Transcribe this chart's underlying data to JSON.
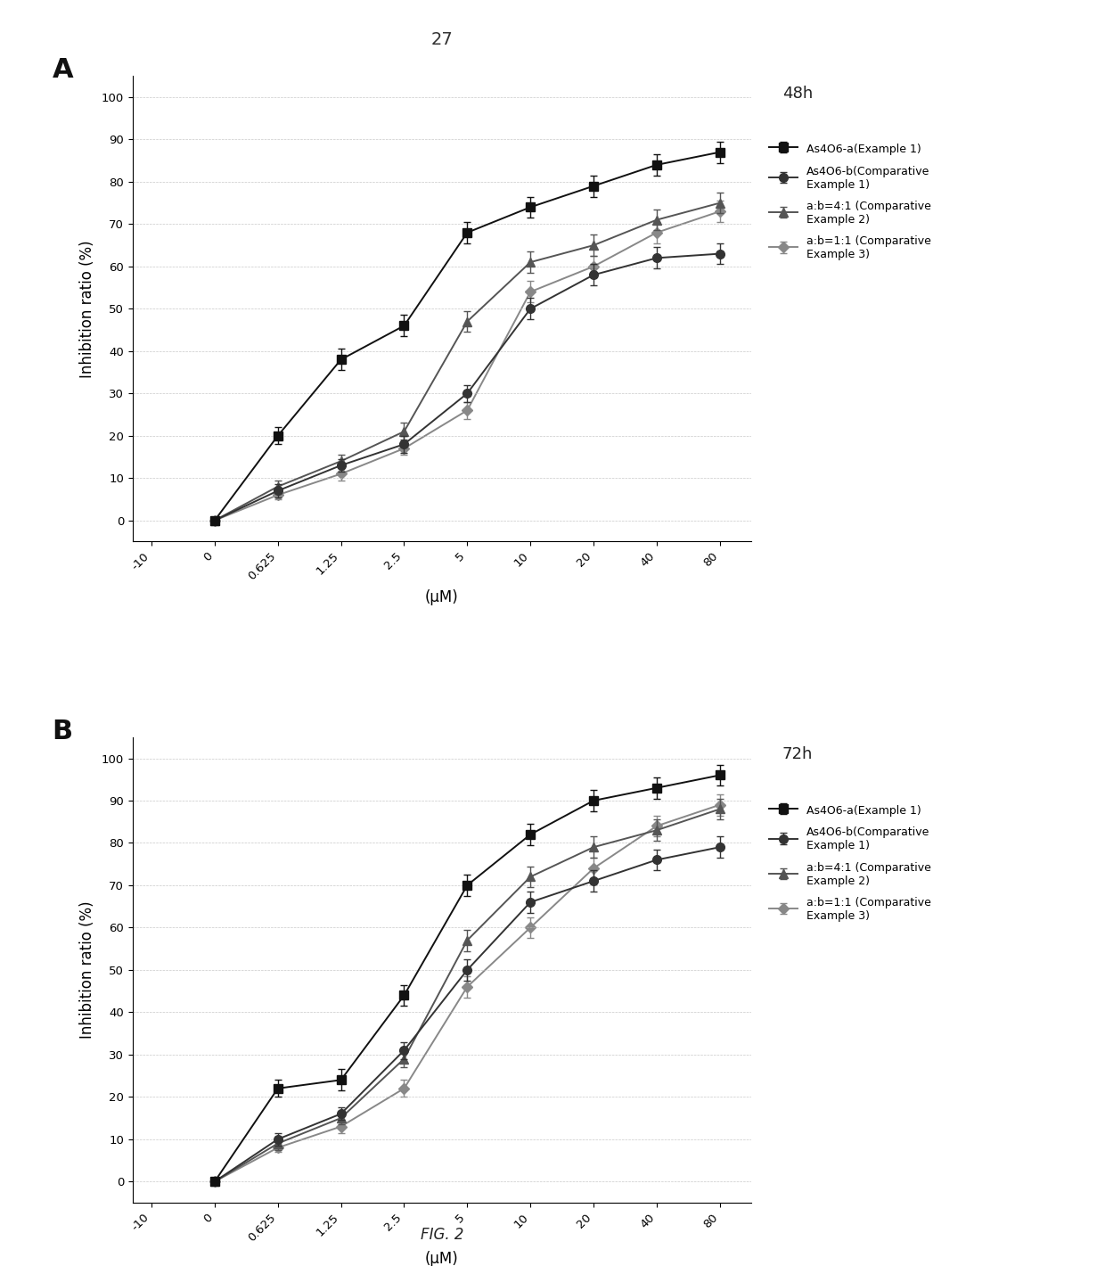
{
  "page_number": "27",
  "fig_label": "FIG. 2",
  "x_tick_labels": [
    "-10",
    "0",
    "0.625",
    "1.25",
    "2.5",
    "5",
    "10",
    "20",
    "40",
    "80"
  ],
  "x_data_indices": [
    1,
    2,
    3,
    4,
    5,
    6,
    7,
    8,
    9
  ],
  "xlabel": "(μM)",
  "ylabel": "Inhibition ratio (%)",
  "ylim": [
    -5,
    105
  ],
  "yticks": [
    0,
    10,
    20,
    30,
    40,
    50,
    60,
    70,
    80,
    90,
    100
  ],
  "panel_A_label": "A",
  "panel_B_label": "B",
  "time_A": "48h",
  "time_B": "72h",
  "series_colors": [
    "#111111",
    "#333333",
    "#555555",
    "#888888"
  ],
  "series_markers": [
    "s",
    "o",
    "^",
    "D"
  ],
  "series_markersizes": [
    7,
    7,
    7,
    6
  ],
  "series_linestyles": [
    "-",
    "-",
    "-",
    "-"
  ],
  "legend_labels_A": [
    "As4O6-a(Example 1)",
    "As4O6-b(Comparative\nExample 1)",
    "a:b=4:1 (Comparative\nExample 2)",
    "a:b=1:1 (Comparative\nExample 3)"
  ],
  "legend_labels_B": [
    "As4O6-a(Example 1)",
    "As4O6-b(Comparative\nExample 1)",
    "a:b=4:1 (Comparative\nExample 2)",
    "a:b=1:1 (Comparative\nExample 3)"
  ],
  "A_series1_y": [
    0,
    20,
    38,
    46,
    68,
    74,
    79,
    84,
    87
  ],
  "A_series1_err": [
    0,
    2.0,
    2.5,
    2.5,
    2.5,
    2.5,
    2.5,
    2.5,
    2.5
  ],
  "A_series2_y": [
    0,
    7,
    13,
    18,
    30,
    50,
    58,
    62,
    63
  ],
  "A_series2_err": [
    0,
    1.5,
    1.5,
    2.0,
    2.0,
    2.5,
    2.5,
    2.5,
    2.5
  ],
  "A_series3_y": [
    0,
    8,
    14,
    21,
    47,
    61,
    65,
    71,
    75
  ],
  "A_series3_err": [
    0,
    1.5,
    1.5,
    2.0,
    2.5,
    2.5,
    2.5,
    2.5,
    2.5
  ],
  "A_series4_y": [
    0,
    6,
    11,
    17,
    26,
    54,
    60,
    68,
    73
  ],
  "A_series4_err": [
    0,
    1.0,
    1.5,
    1.5,
    2.0,
    2.5,
    2.5,
    2.5,
    2.5
  ],
  "B_series1_y": [
    0,
    22,
    24,
    44,
    70,
    82,
    90,
    93,
    96
  ],
  "B_series1_err": [
    0,
    2.0,
    2.5,
    2.5,
    2.5,
    2.5,
    2.5,
    2.5,
    2.5
  ],
  "B_series2_y": [
    0,
    10,
    16,
    31,
    50,
    66,
    71,
    76,
    79
  ],
  "B_series2_err": [
    0,
    1.5,
    1.5,
    2.0,
    2.5,
    2.5,
    2.5,
    2.5,
    2.5
  ],
  "B_series3_y": [
    0,
    9,
    15,
    29,
    57,
    72,
    79,
    83,
    88
  ],
  "B_series3_err": [
    0,
    1.5,
    1.5,
    2.0,
    2.5,
    2.5,
    2.5,
    2.5,
    2.5
  ],
  "B_series4_y": [
    0,
    8,
    13,
    22,
    46,
    60,
    74,
    84,
    89
  ],
  "B_series4_err": [
    0,
    1.0,
    1.5,
    2.0,
    2.5,
    2.5,
    2.5,
    2.5,
    2.5
  ],
  "background_color": "#ffffff",
  "grid_color": "#bbbbbb",
  "font_color": "#222222"
}
